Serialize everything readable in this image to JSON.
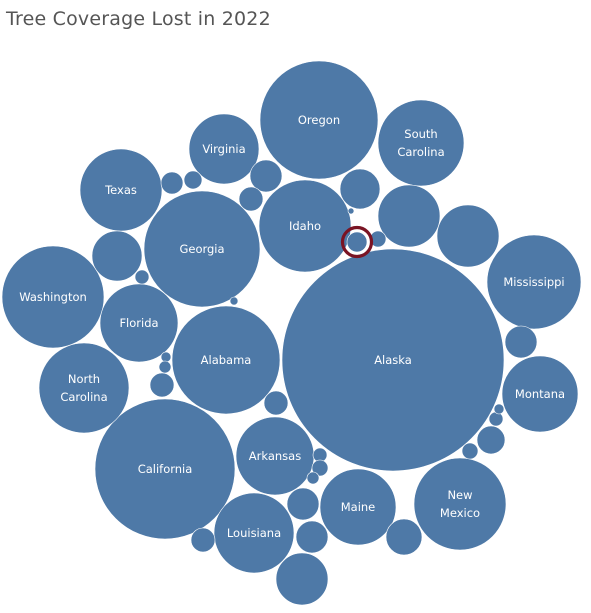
{
  "title": "Tree Coverage Lost in 2022",
  "colors": {
    "bubble": "#4e79a7",
    "label": "#ffffff",
    "highlight": "#7a1424",
    "title": "#555555"
  },
  "chart_data": {
    "type": "packed-bubble",
    "title": "Tree Coverage Lost in 2022",
    "legend": "none",
    "bubbles": [
      {
        "label": "Alaska"
      },
      {
        "label": "Oregon"
      },
      {
        "label": "California"
      },
      {
        "label": "New Mexico"
      },
      {
        "label": "Mississippi"
      },
      {
        "label": "Washington"
      },
      {
        "label": "Georgia"
      },
      {
        "label": "Alabama"
      },
      {
        "label": "Idaho"
      },
      {
        "label": "South Carolina"
      },
      {
        "label": "North Carolina"
      },
      {
        "label": "Texas"
      },
      {
        "label": "Florida"
      },
      {
        "label": "Arkansas"
      },
      {
        "label": "Maine"
      },
      {
        "label": "Louisiana"
      },
      {
        "label": "Virginia"
      },
      {
        "label": "Montana"
      },
      {
        "label": ""
      },
      {
        "label": ""
      },
      {
        "label": ""
      },
      {
        "label": ""
      },
      {
        "label": ""
      },
      {
        "label": ""
      },
      {
        "label": ""
      },
      {
        "label": ""
      },
      {
        "label": ""
      },
      {
        "label": ""
      },
      {
        "label": ""
      },
      {
        "label": ""
      },
      {
        "label": ""
      },
      {
        "label": ""
      },
      {
        "label": ""
      },
      {
        "label": ""
      },
      {
        "label": ""
      },
      {
        "label": ""
      },
      {
        "label": ""
      },
      {
        "label": ""
      },
      {
        "label": ""
      },
      {
        "label": ""
      },
      {
        "label": ""
      },
      {
        "label": ""
      },
      {
        "label": ""
      },
      {
        "label": ""
      },
      {
        "label": ""
      },
      {
        "label": ""
      },
      {
        "label": ""
      },
      {
        "label": ""
      }
    ],
    "highlighted_index": 21
  }
}
